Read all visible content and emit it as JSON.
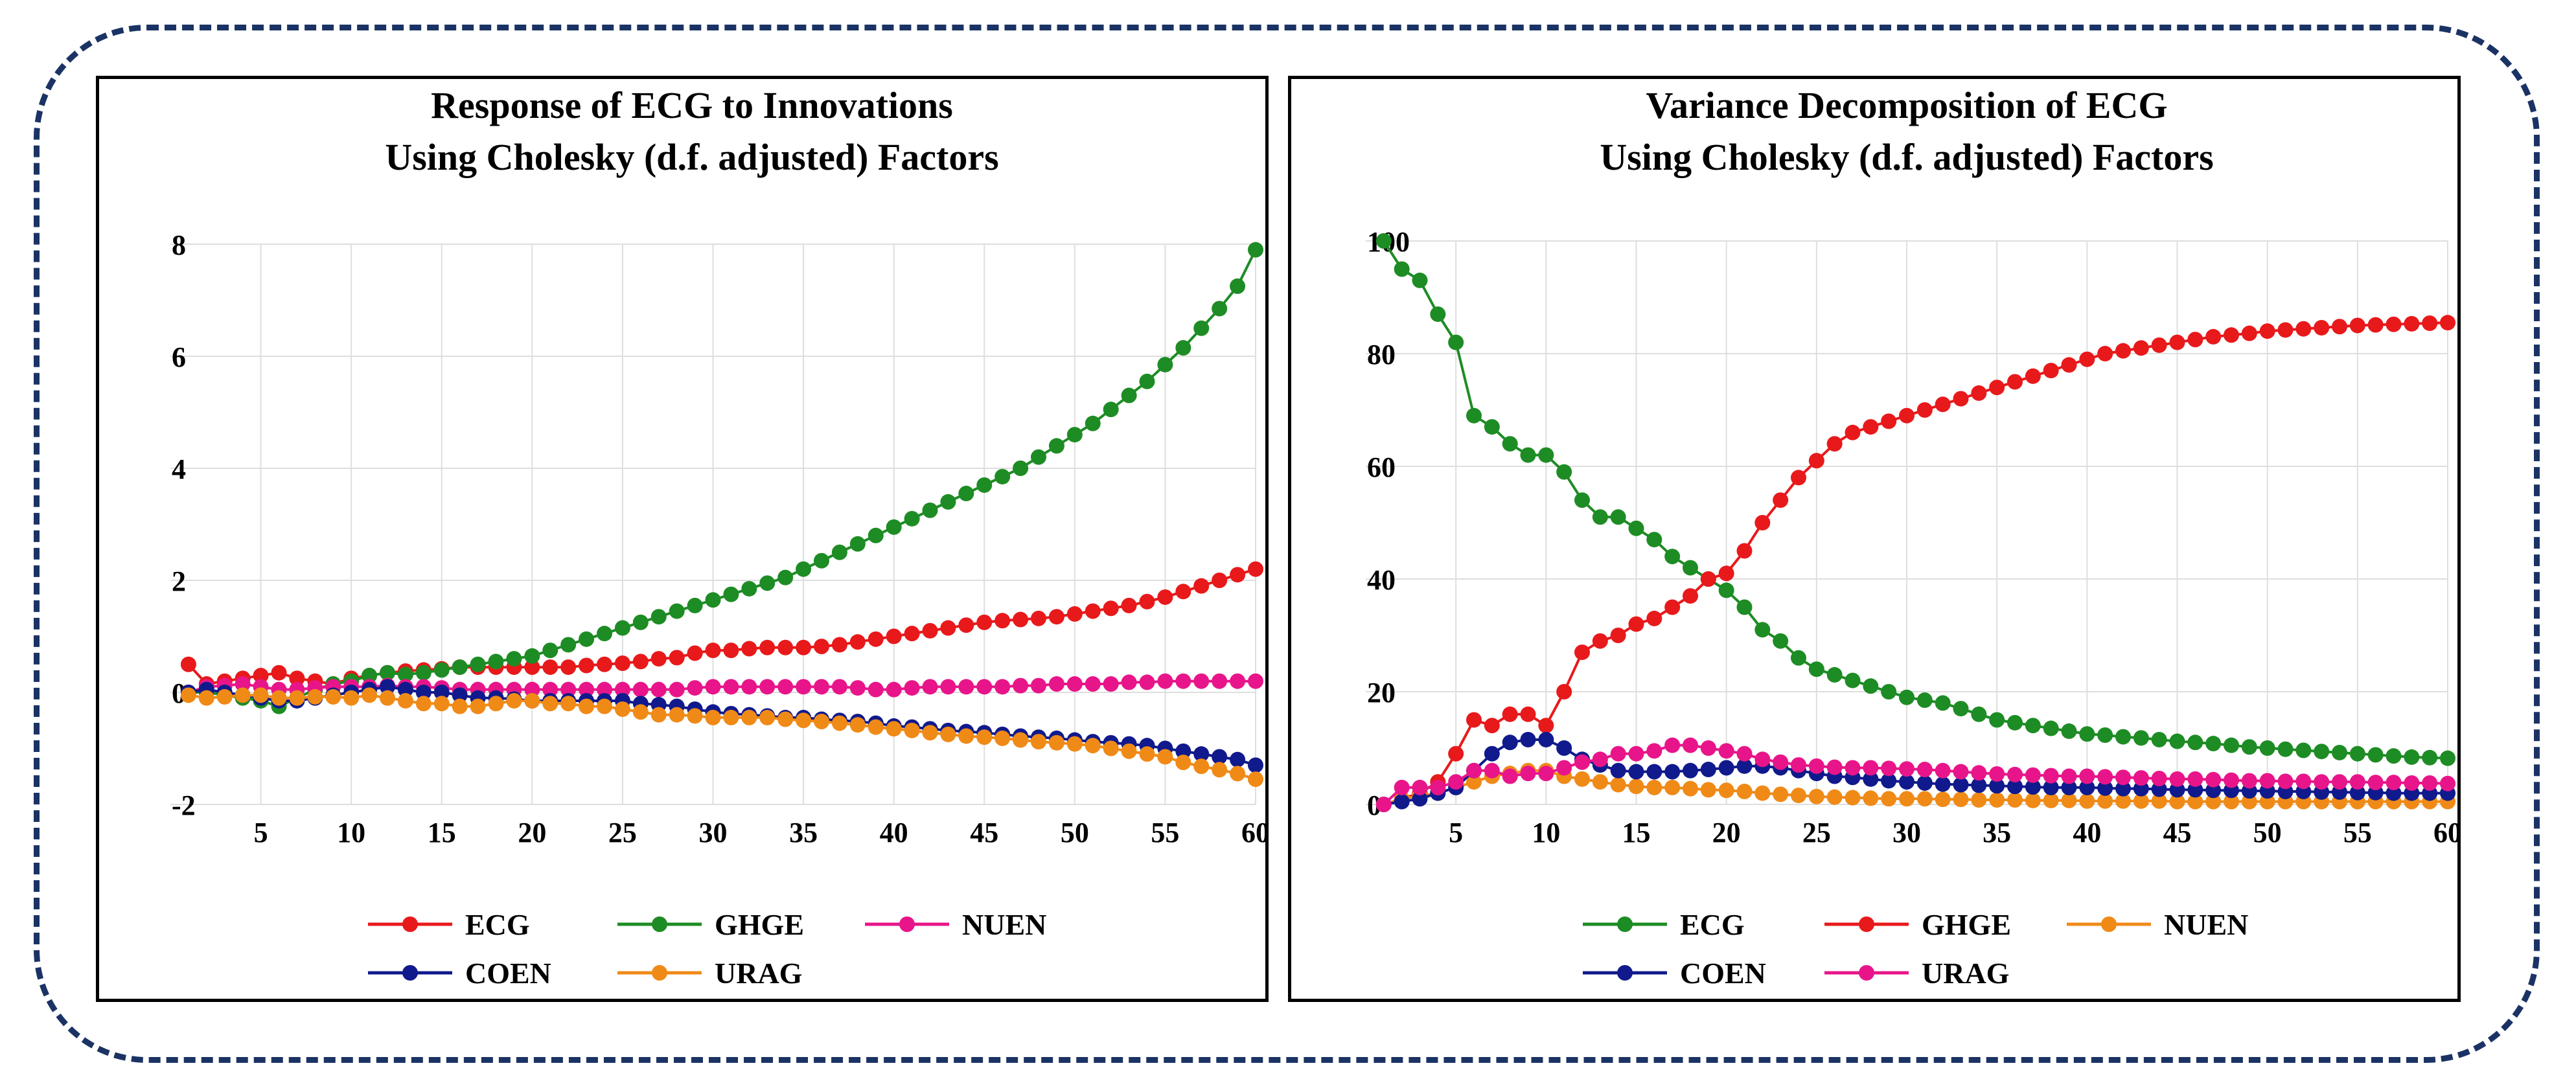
{
  "chart_data": [
    {
      "type": "line",
      "title": "Response of ECG to Innovations",
      "subtitle": "Using Cholesky (d.f. adjusted) Factors",
      "xlabel": "",
      "ylabel": "",
      "xlim": [
        0,
        60
      ],
      "ylim": [
        -2,
        8
      ],
      "xticks": [
        5,
        10,
        15,
        20,
        25,
        30,
        35,
        40,
        45,
        50,
        55,
        60
      ],
      "yticks": [
        -2,
        0,
        2,
        4,
        6,
        8
      ],
      "grid": true,
      "legend_position": "bottom",
      "x": [
        1,
        2,
        3,
        4,
        5,
        6,
        7,
        8,
        9,
        10,
        11,
        12,
        13,
        14,
        15,
        16,
        17,
        18,
        19,
        20,
        21,
        22,
        23,
        24,
        25,
        26,
        27,
        28,
        29,
        30,
        31,
        32,
        33,
        34,
        35,
        36,
        37,
        38,
        39,
        40,
        41,
        42,
        43,
        44,
        45,
        46,
        47,
        48,
        49,
        50,
        51,
        52,
        53,
        54,
        55,
        56,
        57,
        58,
        59,
        60
      ],
      "series": [
        {
          "name": "ECG",
          "color": "#e8191b",
          "values": [
            0.5,
            0.15,
            0.2,
            0.25,
            0.3,
            0.35,
            0.25,
            0.2,
            0.15,
            0.25,
            0.3,
            0.35,
            0.38,
            0.4,
            0.42,
            0.45,
            0.45,
            0.45,
            0.45,
            0.45,
            0.45,
            0.45,
            0.48,
            0.5,
            0.52,
            0.55,
            0.6,
            0.62,
            0.7,
            0.75,
            0.75,
            0.78,
            0.8,
            0.8,
            0.8,
            0.82,
            0.85,
            0.9,
            0.95,
            1.0,
            1.05,
            1.1,
            1.15,
            1.2,
            1.25,
            1.28,
            1.3,
            1.32,
            1.35,
            1.4,
            1.45,
            1.5,
            1.55,
            1.62,
            1.7,
            1.8,
            1.9,
            2.0,
            2.1,
            2.2
          ]
        },
        {
          "name": "GHGE",
          "color": "#1e8c24",
          "values": [
            0.0,
            0.0,
            -0.05,
            -0.1,
            -0.15,
            -0.25,
            -0.1,
            0.05,
            0.15,
            0.2,
            0.3,
            0.35,
            0.32,
            0.35,
            0.4,
            0.45,
            0.5,
            0.55,
            0.6,
            0.65,
            0.75,
            0.85,
            0.95,
            1.05,
            1.15,
            1.25,
            1.35,
            1.45,
            1.55,
            1.65,
            1.75,
            1.85,
            1.95,
            2.05,
            2.2,
            2.35,
            2.5,
            2.65,
            2.8,
            2.95,
            3.1,
            3.25,
            3.4,
            3.55,
            3.7,
            3.85,
            4.0,
            4.2,
            4.4,
            4.6,
            4.8,
            5.05,
            5.3,
            5.55,
            5.85,
            6.15,
            6.5,
            6.85,
            7.25,
            7.9
          ]
        },
        {
          "name": "NUEN",
          "color": "#e8158a",
          "values": [
            0.0,
            0.1,
            0.12,
            0.15,
            0.1,
            0.05,
            0.05,
            0.08,
            0.1,
            0.1,
            0.1,
            0.12,
            0.1,
            0.1,
            0.08,
            0.05,
            0.05,
            0.05,
            0.05,
            0.05,
            0.05,
            0.05,
            0.05,
            0.05,
            0.05,
            0.05,
            0.05,
            0.05,
            0.08,
            0.1,
            0.1,
            0.1,
            0.1,
            0.1,
            0.1,
            0.1,
            0.1,
            0.08,
            0.05,
            0.05,
            0.08,
            0.1,
            0.1,
            0.1,
            0.1,
            0.1,
            0.12,
            0.12,
            0.15,
            0.15,
            0.15,
            0.15,
            0.18,
            0.18,
            0.2,
            0.2,
            0.2,
            0.2,
            0.2,
            0.2
          ]
        },
        {
          "name": "COEN",
          "color": "#101a8c",
          "values": [
            0.0,
            0.05,
            0.0,
            -0.05,
            -0.1,
            -0.15,
            -0.15,
            -0.1,
            -0.05,
            0.0,
            0.05,
            0.1,
            0.05,
            0.0,
            0.0,
            -0.05,
            -0.1,
            -0.1,
            -0.12,
            -0.15,
            -0.15,
            -0.15,
            -0.15,
            -0.15,
            -0.15,
            -0.2,
            -0.22,
            -0.25,
            -0.3,
            -0.35,
            -0.38,
            -0.4,
            -0.42,
            -0.45,
            -0.45,
            -0.48,
            -0.5,
            -0.52,
            -0.55,
            -0.6,
            -0.62,
            -0.65,
            -0.68,
            -0.7,
            -0.72,
            -0.75,
            -0.78,
            -0.8,
            -0.82,
            -0.85,
            -0.88,
            -0.9,
            -0.92,
            -0.95,
            -1.0,
            -1.05,
            -1.1,
            -1.15,
            -1.2,
            -1.3
          ]
        },
        {
          "name": "URAG",
          "color": "#f08a17",
          "values": [
            -0.05,
            -0.1,
            -0.08,
            -0.05,
            -0.05,
            -0.1,
            -0.1,
            -0.08,
            -0.08,
            -0.1,
            -0.05,
            -0.1,
            -0.15,
            -0.2,
            -0.2,
            -0.25,
            -0.25,
            -0.2,
            -0.15,
            -0.15,
            -0.2,
            -0.2,
            -0.25,
            -0.25,
            -0.3,
            -0.35,
            -0.4,
            -0.4,
            -0.42,
            -0.45,
            -0.45,
            -0.45,
            -0.45,
            -0.48,
            -0.5,
            -0.52,
            -0.55,
            -0.58,
            -0.62,
            -0.65,
            -0.68,
            -0.72,
            -0.75,
            -0.78,
            -0.8,
            -0.82,
            -0.85,
            -0.88,
            -0.9,
            -0.92,
            -0.95,
            -1.0,
            -1.05,
            -1.1,
            -1.15,
            -1.25,
            -1.32,
            -1.38,
            -1.45,
            -1.55
          ]
        }
      ],
      "legend": {
        "row1": [
          "ECG",
          "GHGE",
          "NUEN"
        ],
        "row2": [
          "COEN",
          "URAG"
        ]
      }
    },
    {
      "type": "line",
      "title": "Variance Decomposition of ECG",
      "subtitle": "Using Cholesky (d.f. adjusted) Factors",
      "xlabel": "",
      "ylabel": "",
      "xlim": [
        0,
        60
      ],
      "ylim": [
        0,
        100
      ],
      "xticks": [
        5,
        10,
        15,
        20,
        25,
        30,
        35,
        40,
        45,
        50,
        55,
        60
      ],
      "yticks": [
        0,
        20,
        40,
        60,
        80,
        100
      ],
      "grid": true,
      "legend_position": "bottom",
      "x": [
        1,
        2,
        3,
        4,
        5,
        6,
        7,
        8,
        9,
        10,
        11,
        12,
        13,
        14,
        15,
        16,
        17,
        18,
        19,
        20,
        21,
        22,
        23,
        24,
        25,
        26,
        27,
        28,
        29,
        30,
        31,
        32,
        33,
        34,
        35,
        36,
        37,
        38,
        39,
        40,
        41,
        42,
        43,
        44,
        45,
        46,
        47,
        48,
        49,
        50,
        51,
        52,
        53,
        54,
        55,
        56,
        57,
        58,
        59,
        60
      ],
      "series": [
        {
          "name": "ECG",
          "color": "#1e8c24",
          "values": [
            100,
            95,
            93,
            87,
            82,
            69,
            67,
            64,
            62,
            62,
            59,
            54,
            51,
            51,
            49,
            47,
            44,
            42,
            40,
            38,
            35,
            31,
            29,
            26,
            24,
            23,
            22,
            21,
            20,
            19,
            18.5,
            18,
            17,
            16,
            15,
            14.5,
            14,
            13.5,
            13,
            12.5,
            12.3,
            12,
            11.8,
            11.5,
            11.2,
            11,
            10.8,
            10.5,
            10.2,
            10,
            9.8,
            9.6,
            9.4,
            9.2,
            9,
            8.8,
            8.6,
            8.4,
            8.3,
            8.2
          ]
        },
        {
          "name": "GHGE",
          "color": "#e8191b",
          "values": [
            0,
            1,
            2,
            4,
            9,
            15,
            14,
            16,
            16,
            14,
            20,
            27,
            29,
            30,
            32,
            33,
            35,
            37,
            40,
            41,
            45,
            50,
            54,
            58,
            61,
            64,
            66,
            67,
            68,
            69,
            70,
            71,
            72,
            73,
            74,
            75,
            76,
            77,
            78,
            79,
            80,
            80.5,
            81,
            81.5,
            82,
            82.5,
            83,
            83.3,
            83.6,
            84,
            84.2,
            84.4,
            84.6,
            84.8,
            85,
            85.1,
            85.2,
            85.3,
            85.4,
            85.5
          ]
        },
        {
          "name": "NUEN",
          "color": "#f08a17",
          "values": [
            0,
            1,
            1.5,
            2,
            3,
            4,
            5,
            5.5,
            6,
            6,
            5,
            4.5,
            4,
            3.5,
            3.2,
            3,
            3,
            2.8,
            2.6,
            2.5,
            2.3,
            2,
            1.8,
            1.6,
            1.4,
            1.3,
            1.2,
            1.1,
            1,
            1,
            1,
            0.9,
            0.9,
            0.8,
            0.8,
            0.8,
            0.7,
            0.7,
            0.7,
            0.6,
            0.6,
            0.6,
            0.6,
            0.6,
            0.5,
            0.5,
            0.5,
            0.5,
            0.5,
            0.5,
            0.5,
            0.5,
            0.5,
            0.5,
            0.5,
            0.5,
            0.5,
            0.5,
            0.5,
            0.5
          ]
        },
        {
          "name": "COEN",
          "color": "#101a8c",
          "values": [
            0,
            0.5,
            1,
            2,
            3,
            6,
            9,
            11,
            11.5,
            11.5,
            10,
            8,
            7,
            6,
            5.8,
            5.8,
            5.8,
            6,
            6.2,
            6.5,
            6.8,
            6.8,
            6.5,
            6,
            5.5,
            5,
            4.8,
            4.5,
            4.2,
            4,
            3.8,
            3.6,
            3.5,
            3.4,
            3.3,
            3.2,
            3.1,
            3,
            3,
            3,
            2.9,
            2.8,
            2.8,
            2.7,
            2.6,
            2.6,
            2.5,
            2.5,
            2.4,
            2.4,
            2.3,
            2.3,
            2.2,
            2.2,
            2.1,
            2.1,
            2,
            2,
            2,
            2
          ]
        },
        {
          "name": "URAG",
          "color": "#e8158a",
          "values": [
            0,
            3,
            3,
            3,
            4,
            6,
            6,
            5,
            5.5,
            5.5,
            6.5,
            7.5,
            8,
            9,
            9,
            9.5,
            10.5,
            10.5,
            10,
            9.5,
            9,
            8,
            7.5,
            7,
            6.8,
            6.6,
            6.5,
            6.5,
            6.4,
            6.3,
            6.2,
            6,
            5.8,
            5.6,
            5.4,
            5.3,
            5.2,
            5.1,
            5,
            5,
            4.9,
            4.8,
            4.7,
            4.6,
            4.5,
            4.5,
            4.4,
            4.3,
            4.2,
            4.2,
            4.1,
            4.1,
            4,
            4,
            4,
            3.9,
            3.9,
            3.8,
            3.8,
            3.7
          ]
        }
      ],
      "legend": {
        "row1": [
          "ECG",
          "GHGE",
          "NUEN"
        ],
        "row2": [
          "COEN",
          "URAG"
        ]
      }
    }
  ]
}
